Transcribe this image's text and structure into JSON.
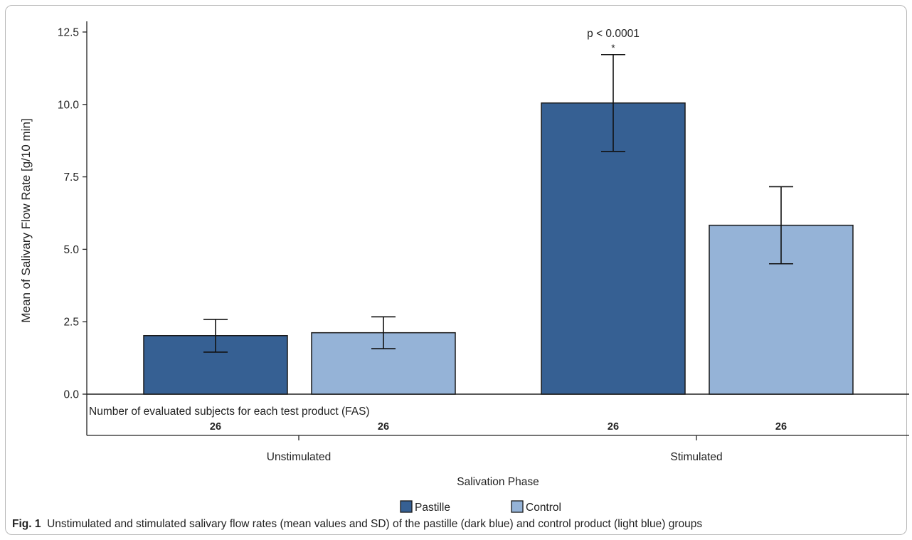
{
  "chart_data": {
    "type": "bar",
    "title": "",
    "xlabel": "Salivation Phase",
    "ylabel": "Mean of Salivary Flow Rate [g/10 min]",
    "ylim": [
      0,
      12.5
    ],
    "yticks": [
      "0.0",
      "2.5",
      "5.0",
      "7.5",
      "10.0",
      "12.5"
    ],
    "categories": [
      "Unstimulated",
      "Stimulated"
    ],
    "series": [
      {
        "name": "Pastille",
        "color": "#366093",
        "values": [
          2.02,
          10.05
        ],
        "error_low": [
          1.45,
          8.38
        ],
        "error_high": [
          2.58,
          11.72
        ],
        "subject_counts": [
          "26",
          "26"
        ]
      },
      {
        "name": "Control",
        "color": "#95b3d7",
        "values": [
          2.12,
          5.83
        ],
        "error_low": [
          1.57,
          4.5
        ],
        "error_high": [
          2.67,
          7.16
        ],
        "subject_counts": [
          "26",
          "26"
        ]
      }
    ],
    "annotations": [
      {
        "category": "Stimulated",
        "p_text": "p < 0.0001",
        "marker": "*"
      }
    ],
    "subjects_row_label": "Number of evaluated subjects for each test product (FAS)",
    "legend": {
      "position": "bottom",
      "entries": [
        "Pastille",
        "Control"
      ]
    },
    "grid": false
  },
  "caption": {
    "label": "Fig. 1",
    "text": "Unstimulated and stimulated salivary flow rates (mean values and SD) of the pastille (dark blue) and control product (light blue) groups"
  }
}
